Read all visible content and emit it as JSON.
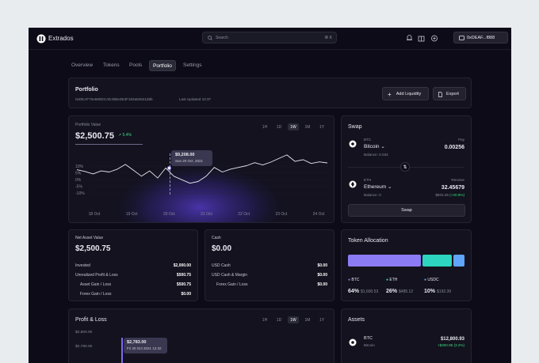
{
  "topbar": {
    "brand": "Extrados",
    "search_placeholder": "Search",
    "search_shortcut": "⌘ K",
    "wallet": "0xDEAF...f888"
  },
  "tabs": [
    {
      "label": "Overview"
    },
    {
      "label": "Tokens"
    },
    {
      "label": "Pools"
    },
    {
      "label": "Portfolio",
      "active": true
    },
    {
      "label": "Settings"
    }
  ],
  "portfolio_header": {
    "title": "Portfolio",
    "address": "0xDEAF70e980DCAE40Be3E3F183a52841d8b",
    "updated": "Last Updated 10:37",
    "buttons": [
      "Add Liquidity",
      "Export"
    ]
  },
  "portfolio_chart": {
    "label": "Portfolio Value",
    "value": "$2,500.75",
    "change": "5.4%",
    "timeframes": [
      {
        "label": "1H"
      },
      {
        "label": "1D"
      },
      {
        "label": "1W",
        "active": true
      },
      {
        "label": "1M"
      },
      {
        "label": "1Y"
      }
    ],
    "tooltip": {
      "value": "$9,208.00",
      "date": "Sun 20 Oct, 2021"
    },
    "ylim": [
      -15,
      20
    ],
    "yticks": [
      {
        "value": 10,
        "label": "10%"
      },
      {
        "value": 5,
        "label": "5%"
      },
      {
        "value": 0,
        "label": "0%"
      },
      {
        "value": -5,
        "label": "-5%"
      },
      {
        "value": -10,
        "label": "-10%"
      }
    ],
    "x_labels": [
      "18 Oct",
      "19 Oct",
      "20 Oct",
      "21 Oct",
      "22 Oct",
      "23 Oct",
      "24 Oct"
    ],
    "values": [
      7.4,
      6.1,
      4.3,
      6.5,
      5.7,
      7.8,
      11.3,
      7.0,
      2.6,
      6.5,
      1.3,
      8.7,
      2.6,
      0.0,
      -2.6,
      -1.3,
      2.6,
      9.1,
      5.7,
      7.8,
      9.1,
      10.4,
      12.6,
      10.9,
      13.0,
      15.7,
      18.3,
      13.5,
      14.8,
      12.0,
      13.2,
      12.4
    ]
  },
  "swap": {
    "title": "Swap",
    "pay": {
      "symbol": "BTC",
      "name": "Bitcoin",
      "balance": "Balance: 0.034",
      "label": "Pay",
      "amount": "0.00256"
    },
    "receive": {
      "symbol": "ETH",
      "name": "Ethereum",
      "balance": "Balance: 0",
      "label": "Receive",
      "amount": "32.45679",
      "usd": "$803.25",
      "change": "(+40.8%)"
    },
    "button": "Swap"
  },
  "net_asset": {
    "title": "Net Asset Value",
    "value": "$2,500.75",
    "rows": [
      {
        "label": "Invested",
        "value": "$2,000.00"
      },
      {
        "label": "Unrealized Profit & Loss",
        "value": "$500.75"
      },
      {
        "label": "Asset Gain / Loss",
        "value": "$500.75",
        "sub": true
      },
      {
        "label": "Forex Gain / Loss",
        "value": "$0.00",
        "sub": true
      }
    ]
  },
  "cash": {
    "title": "Cash",
    "value": "$0.00",
    "rows": [
      {
        "label": "USD Cash",
        "value": "$0.00"
      },
      {
        "label": "USD Cash & Margin",
        "value": "$0.00"
      },
      {
        "label": "Forex Gain / Loss",
        "value": "$0.00",
        "sub": true
      }
    ]
  },
  "allocation": {
    "title": "Token Allocation",
    "tokens": [
      {
        "name": "BTC",
        "share": 64,
        "share_label": "64%",
        "amount": "$1,600.53",
        "color": "#8b7cf6"
      },
      {
        "name": "ETH",
        "share": 26,
        "share_label": "26%",
        "amount": "$485.12",
        "color": "#2dd4bf"
      },
      {
        "name": "USDC",
        "share": 10,
        "share_label": "10%",
        "amount": "$192.39",
        "color": "#60a5fa"
      }
    ]
  },
  "pnl": {
    "title": "Profit & Loss",
    "timeframes": [
      {
        "label": "1H"
      },
      {
        "label": "1D"
      },
      {
        "label": "1W",
        "active": true
      },
      {
        "label": "1M"
      },
      {
        "label": "1Y"
      }
    ],
    "y_labels": [
      "$2,800.00",
      "$2,780.00"
    ],
    "tooltip": {
      "value": "$2,783.00",
      "date": "Fri 20 Oct 2021 12:32"
    }
  },
  "assets": {
    "title": "Assets",
    "rows": [
      {
        "symbol": "BTC",
        "name": "Bitcoin",
        "value": "$12,800.93",
        "change": "+$300.95 (3.2%)"
      }
    ]
  }
}
